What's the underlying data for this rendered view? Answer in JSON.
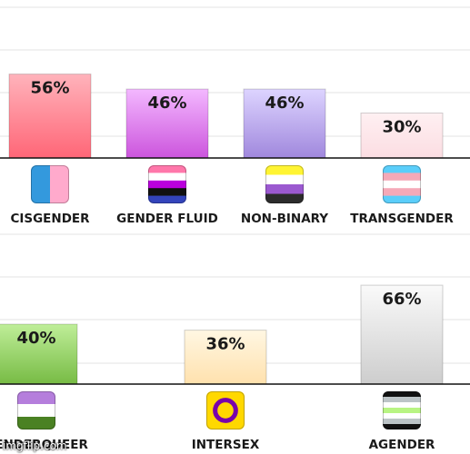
{
  "chart_data": [
    {
      "type": "bar",
      "categories": [
        "CISGENDER",
        "GENDER FLUID",
        "NON-BINARY",
        "TRANSGENDER"
      ],
      "values": [
        56,
        46,
        46,
        30
      ],
      "value_labels": [
        "56%",
        "46%",
        "46%",
        "30%"
      ],
      "icons": [
        "cisgender-flag-icon",
        "genderfluid-flag-icon",
        "nonbinary-flag-icon",
        "transgender-flag-icon"
      ],
      "colors": [
        [
          "#ffb3bb",
          "#ff6677"
        ],
        [
          "#f3b8ff",
          "#cc55dd"
        ],
        [
          "#ddd4ff",
          "#a088dd"
        ],
        [
          "#fff0f2",
          "#fbdde2"
        ]
      ],
      "grid": true
    },
    {
      "type": "bar",
      "categories": [
        "GENDERQUEER",
        "INTERSEX",
        "AGENDER"
      ],
      "values": [
        40,
        36,
        66
      ],
      "value_labels": [
        "40%",
        "36%",
        "66%"
      ],
      "icons": [
        "genderqueer-flag-icon",
        "intersex-flag-icon",
        "agender-flag-icon"
      ],
      "colors": [
        [
          "#bfee99",
          "#77bb44"
        ],
        [
          "#fff7e3",
          "#ffe1ad"
        ],
        [
          "#fafafa",
          "#cdcdcd"
        ]
      ],
      "grid": true
    }
  ],
  "watermark": "imgflip.com"
}
